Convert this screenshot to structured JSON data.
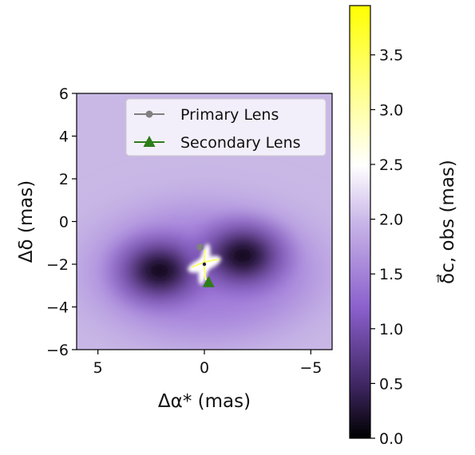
{
  "chart_data": {
    "type": "heatmap",
    "title": "",
    "xlabel": "Δα* (mas)",
    "ylabel": "Δδ (mas)",
    "colorbar_label": "δ⃗c, obs (mas)",
    "xlim": [
      6,
      -6
    ],
    "ylim": [
      -6,
      6
    ],
    "x_ticks": [
      5,
      0,
      -5
    ],
    "x_tick_labels": [
      "5",
      "0",
      "−5"
    ],
    "y_ticks": [
      -6,
      -4,
      -2,
      0,
      2,
      4,
      6
    ],
    "y_tick_labels": [
      "−6",
      "−4",
      "−2",
      "0",
      "2",
      "4",
      "6"
    ],
    "colorbar": {
      "range": [
        0.0,
        3.95
      ],
      "ticks": [
        0.0,
        0.5,
        1.0,
        1.5,
        2.0,
        2.5,
        3.0,
        3.5
      ],
      "tick_labels": [
        "0.0",
        "0.5",
        "1.0",
        "1.5",
        "2.0",
        "2.5",
        "3.0",
        "3.5"
      ],
      "colormap": [
        "#000000",
        "#3d2560",
        "#8a5fcc",
        "#c9b6e8",
        "#ffffff",
        "#ffff60",
        "#ffff00"
      ]
    },
    "legend": {
      "position": "top-right",
      "entries": [
        {
          "label": "Primary Lens",
          "marker": "circle",
          "color": "#808080"
        },
        {
          "label": "Secondary Lens",
          "marker": "triangle",
          "color": "#2e7d1a"
        }
      ]
    },
    "primary_lens": {
      "x": 0.2,
      "y": -1.2
    },
    "secondary_lens": {
      "x": -0.2,
      "y": -2.85
    },
    "field_center": {
      "x": 0.0,
      "y": -2.0
    },
    "dark_lobes": [
      {
        "x": 2.1,
        "y": -2.3
      },
      {
        "x": -1.8,
        "y": -1.6
      }
    ],
    "grid": false
  }
}
